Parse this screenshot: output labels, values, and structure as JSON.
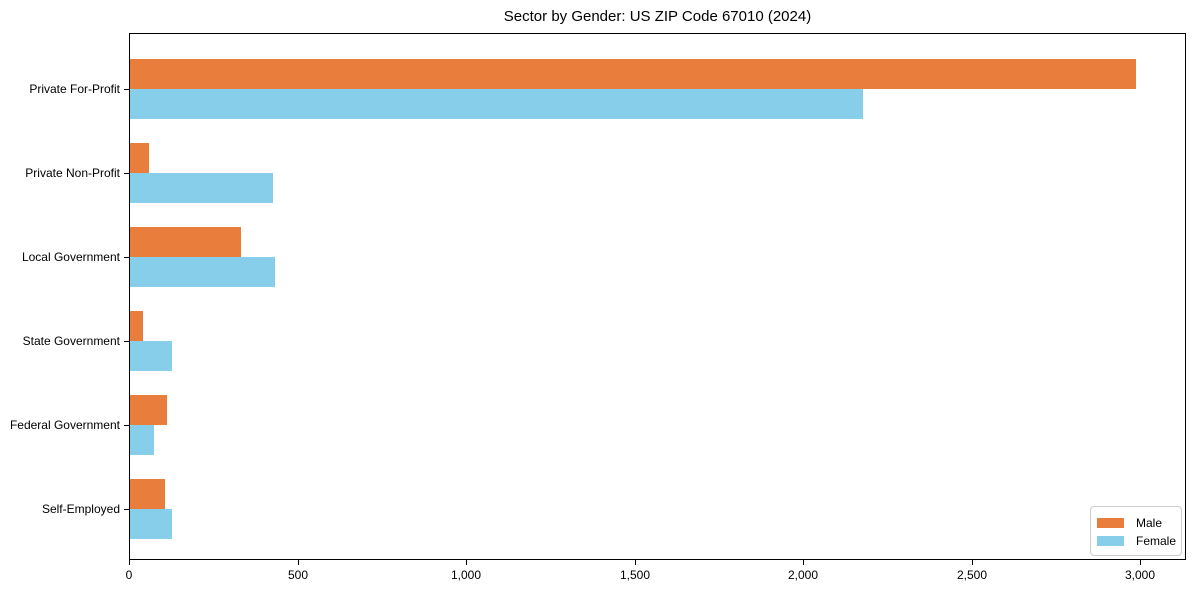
{
  "title": "Sector by Gender: US ZIP Code 67010 (2024)",
  "chart_data": {
    "type": "bar",
    "orientation": "horizontal",
    "title": "Sector by Gender: US ZIP Code 67010 (2024)",
    "categories": [
      "Private For-Profit",
      "Private Non-Profit",
      "Local Government",
      "State Government",
      "Federal Government",
      "Self-Employed"
    ],
    "series": [
      {
        "name": "Male",
        "color": "#e87d3c",
        "values": [
          2985,
          55,
          330,
          40,
          110,
          105
        ]
      },
      {
        "name": "Female",
        "color": "#87ceeb",
        "values": [
          2175,
          425,
          430,
          125,
          70,
          125
        ]
      }
    ],
    "xlabel": "",
    "ylabel": "",
    "xlim": [
      0,
      3140
    ],
    "x_ticks": [
      {
        "value": 0,
        "label": "0"
      },
      {
        "value": 500,
        "label": "500"
      },
      {
        "value": 1000,
        "label": "1,000"
      },
      {
        "value": 1500,
        "label": "1,500"
      },
      {
        "value": 2000,
        "label": "2,000"
      },
      {
        "value": 2500,
        "label": "2,500"
      },
      {
        "value": 3000,
        "label": "3,000"
      }
    ],
    "grid": false,
    "legend_position": "lower right"
  }
}
